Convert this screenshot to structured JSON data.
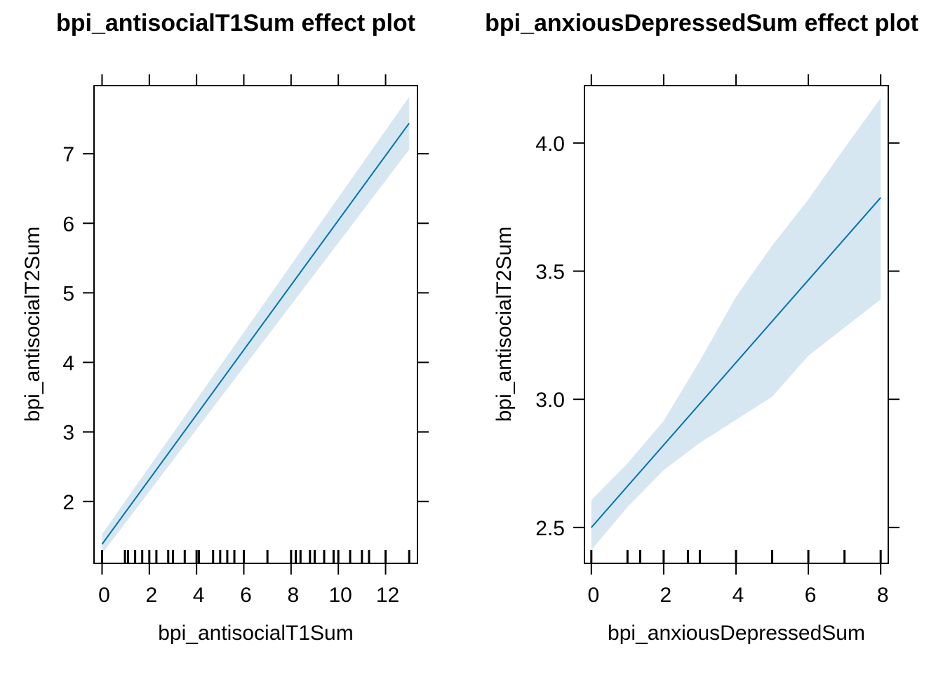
{
  "chart_data": [
    {
      "type": "line",
      "title": "bpi_antisocialT1Sum effect plot",
      "xlabel": "bpi_antisocialT1Sum",
      "ylabel": "bpi_antisocialT2Sum",
      "xlim": [
        -0.34,
        13.35
      ],
      "ylim": [
        1.11,
        7.98
      ],
      "xticks": [
        0,
        2,
        4,
        6,
        8,
        10,
        12
      ],
      "xtick_labels": [
        "0",
        "2",
        "4",
        "6",
        "8",
        "10",
        "12"
      ],
      "yticks": [
        2,
        3,
        4,
        5,
        6,
        7
      ],
      "ytick_labels": [
        "2",
        "3",
        "4",
        "5",
        "6",
        "7"
      ],
      "fit": {
        "x": [
          0,
          13
        ],
        "y": [
          1.385,
          7.44
        ]
      },
      "band": {
        "x": [
          0,
          13
        ],
        "lower": [
          1.25,
          7.06
        ],
        "upper": [
          1.53,
          7.82
        ]
      },
      "rug": [
        0,
        0.97,
        1.1,
        1.4,
        1.7,
        2,
        2.3,
        2.8,
        3,
        3.5,
        4,
        4.1,
        4.7,
        5,
        5.3,
        5.6,
        6,
        7,
        8,
        8.2,
        8.4,
        8.8,
        9,
        9.4,
        9.8,
        10,
        10.5,
        11,
        11.3,
        12,
        13
      ],
      "grid": false
    },
    {
      "type": "line",
      "title": "bpi_anxiousDepressedSum effect plot",
      "xlabel": "bpi_anxiousDepressedSum",
      "ylabel": "bpi_antisocialT2Sum",
      "xlim": [
        -0.19,
        8.21
      ],
      "ylim": [
        2.36,
        4.224
      ],
      "xticks": [
        0,
        2,
        4,
        6,
        8
      ],
      "xtick_labels": [
        "0",
        "2",
        "4",
        "6",
        "8"
      ],
      "yticks": [
        2.5,
        3.0,
        3.5,
        4.0
      ],
      "ytick_labels": [
        "2.5",
        "3.0",
        "3.5",
        "4.0"
      ],
      "fit": {
        "x": [
          0,
          8
        ],
        "y": [
          2.5,
          3.787
        ]
      },
      "band": {
        "x": [
          0,
          1,
          2,
          3,
          4,
          5,
          6,
          7,
          8
        ],
        "lower": [
          2.412,
          2.58,
          2.724,
          2.83,
          2.92,
          3.01,
          3.17,
          3.28,
          3.39
        ],
        "upper": [
          2.607,
          2.75,
          2.916,
          3.15,
          3.4,
          3.6,
          3.78,
          3.98,
          4.175
        ]
      },
      "rug": [
        0,
        1,
        1.35,
        2,
        2.67,
        3,
        4,
        5,
        6,
        7,
        8
      ],
      "grid": false
    }
  ],
  "colors": {
    "line": "#0072B2",
    "band": "#D6E7F1",
    "axis": "#000000"
  }
}
